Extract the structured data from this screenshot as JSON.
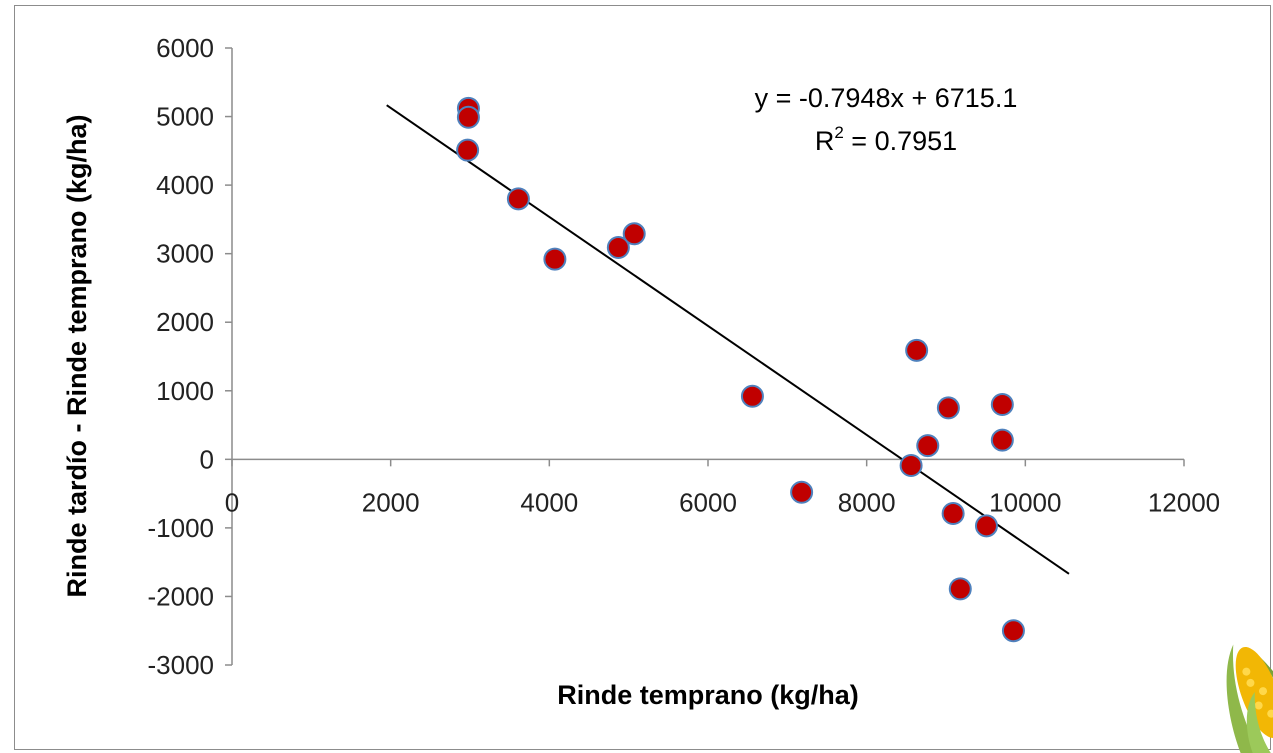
{
  "chart_data": {
    "type": "scatter",
    "title": "",
    "xlabel": "Rinde temprano (kg/ha)",
    "ylabel": "Rinde tardío - Rinde temprano (kg/ha)",
    "xlim": [
      0,
      12000
    ],
    "ylim": [
      -3000,
      6000
    ],
    "x_ticks": [
      0,
      2000,
      4000,
      6000,
      8000,
      10000,
      12000
    ],
    "y_ticks": [
      -3000,
      -2000,
      -1000,
      0,
      1000,
      2000,
      3000,
      4000,
      5000,
      6000
    ],
    "x_tick_labels": [
      "0",
      "2000",
      "4000",
      "6000",
      "8000",
      "10000",
      "12000"
    ],
    "y_tick_labels": [
      "-3000",
      "-2000",
      "-1000",
      "0",
      "1000",
      "2000",
      "3000",
      "4000",
      "5000",
      "6000"
    ],
    "grid": false,
    "legend": "none",
    "series": [
      {
        "color": "#c00000",
        "edge_color": "#4f81bd",
        "points": [
          {
            "x": 2980,
            "y": 5120
          },
          {
            "x": 2980,
            "y": 4990
          },
          {
            "x": 2970,
            "y": 4510
          },
          {
            "x": 3610,
            "y": 3800
          },
          {
            "x": 4070,
            "y": 2920
          },
          {
            "x": 4870,
            "y": 3090
          },
          {
            "x": 5070,
            "y": 3290
          },
          {
            "x": 6560,
            "y": 920
          },
          {
            "x": 7180,
            "y": -480
          },
          {
            "x": 8560,
            "y": -90
          },
          {
            "x": 8630,
            "y": 1590
          },
          {
            "x": 8770,
            "y": 200
          },
          {
            "x": 9030,
            "y": 750
          },
          {
            "x": 9090,
            "y": -790
          },
          {
            "x": 9180,
            "y": -1890
          },
          {
            "x": 9510,
            "y": -970
          },
          {
            "x": 9710,
            "y": 800
          },
          {
            "x": 9710,
            "y": 280
          },
          {
            "x": 9850,
            "y": -2500
          }
        ]
      }
    ],
    "trendline": {
      "slope": -0.7948,
      "intercept": 6715.1,
      "x_range": [
        1950,
        10550
      ],
      "color": "#000000"
    },
    "annotations": {
      "equation": "y = -0.7948x + 6715.1",
      "r2_prefix": "R",
      "r2_sup": "2",
      "r2_value": " = 0.7951"
    }
  },
  "decoration": {
    "corn_icon": "corn-cob-icon"
  }
}
